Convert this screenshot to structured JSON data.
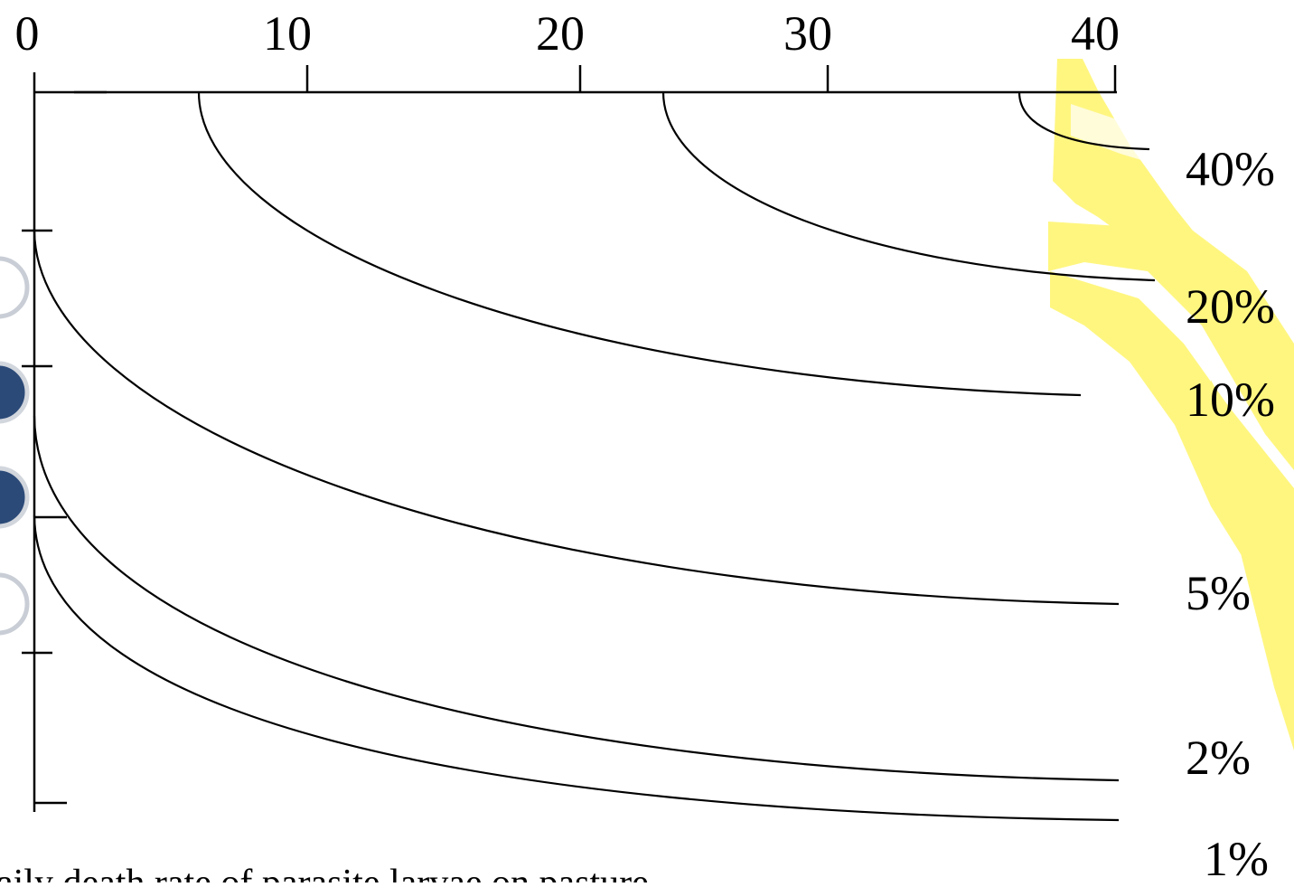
{
  "chart_data": {
    "type": "line",
    "x_ticks": [
      "0",
      "10",
      "20",
      "30",
      "40"
    ],
    "xlim": [
      0,
      40
    ],
    "series": [
      {
        "name": "40%",
        "curve": "start_37"
      },
      {
        "name": "20%",
        "curve": "start_23"
      },
      {
        "name": "10%",
        "curve": "start_6"
      },
      {
        "name": "5%",
        "curve": "from_axis_tick1"
      },
      {
        "name": "2%",
        "curve": "from_axis_tick2"
      },
      {
        "name": "1%",
        "curve": "from_axis_tick3"
      }
    ],
    "caption": "aily death rate of parasite larvae on pasture",
    "grid": false
  },
  "colors": {
    "line": "#000000",
    "watermark": "#fff56b",
    "bullet_dark": "#2b4a78",
    "bullet_light": "#ffffff"
  }
}
